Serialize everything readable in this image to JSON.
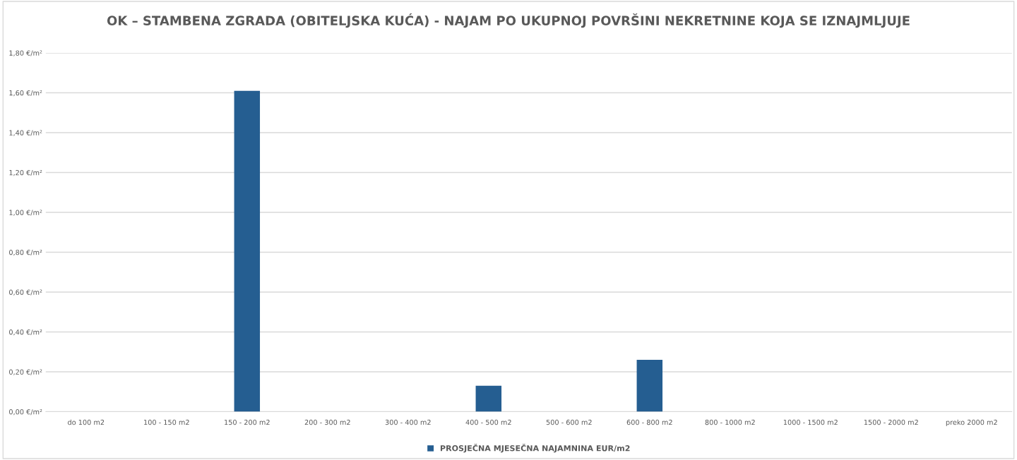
{
  "chart_data": {
    "type": "bar",
    "title": "OK – STAMBENA ZGRADA (OBITELJSKA KUĆA) - NAJAM PO UKUPNOJ POVRŠINI NEKRETNINE KOJA SE IZNAJMLJUJE",
    "categories": [
      "do 100 m2",
      "100 - 150 m2",
      "150 - 200 m2",
      "200 - 300 m2",
      "300 - 400 m2",
      "400 - 500 m2",
      "500 - 600 m2",
      "600 - 800 m2",
      "800 - 1000 m2",
      "1000 - 1500 m2",
      "1500 - 2000 m2",
      "preko 2000 m2"
    ],
    "series": [
      {
        "name": "PROSJEČNA MJESEČNA NAJAMNINA EUR/m2",
        "color": "#255e91",
        "values": [
          null,
          null,
          1.61,
          null,
          null,
          0.13,
          null,
          0.26,
          null,
          null,
          null,
          null
        ]
      }
    ],
    "ylim": [
      0,
      1.8
    ],
    "yticks": [
      {
        "value": 0,
        "label": "0,00 €/m²"
      },
      {
        "value": 0.2,
        "label": "0,20 €/m²"
      },
      {
        "value": 0.4,
        "label": "0,40 €/m²"
      },
      {
        "value": 0.6,
        "label": "0,60 €/m²"
      },
      {
        "value": 0.8,
        "label": "0,80 €/m²"
      },
      {
        "value": 1.0,
        "label": "1,00 €/m²"
      },
      {
        "value": 1.2,
        "label": "1,20 €/m²"
      },
      {
        "value": 1.4,
        "label": "1,40 €/m²"
      },
      {
        "value": 1.6,
        "label": "1,60 €/m²"
      },
      {
        "value": 1.8,
        "label": "1,80 €/m²"
      }
    ],
    "grid": "y",
    "legend": "bottom"
  }
}
